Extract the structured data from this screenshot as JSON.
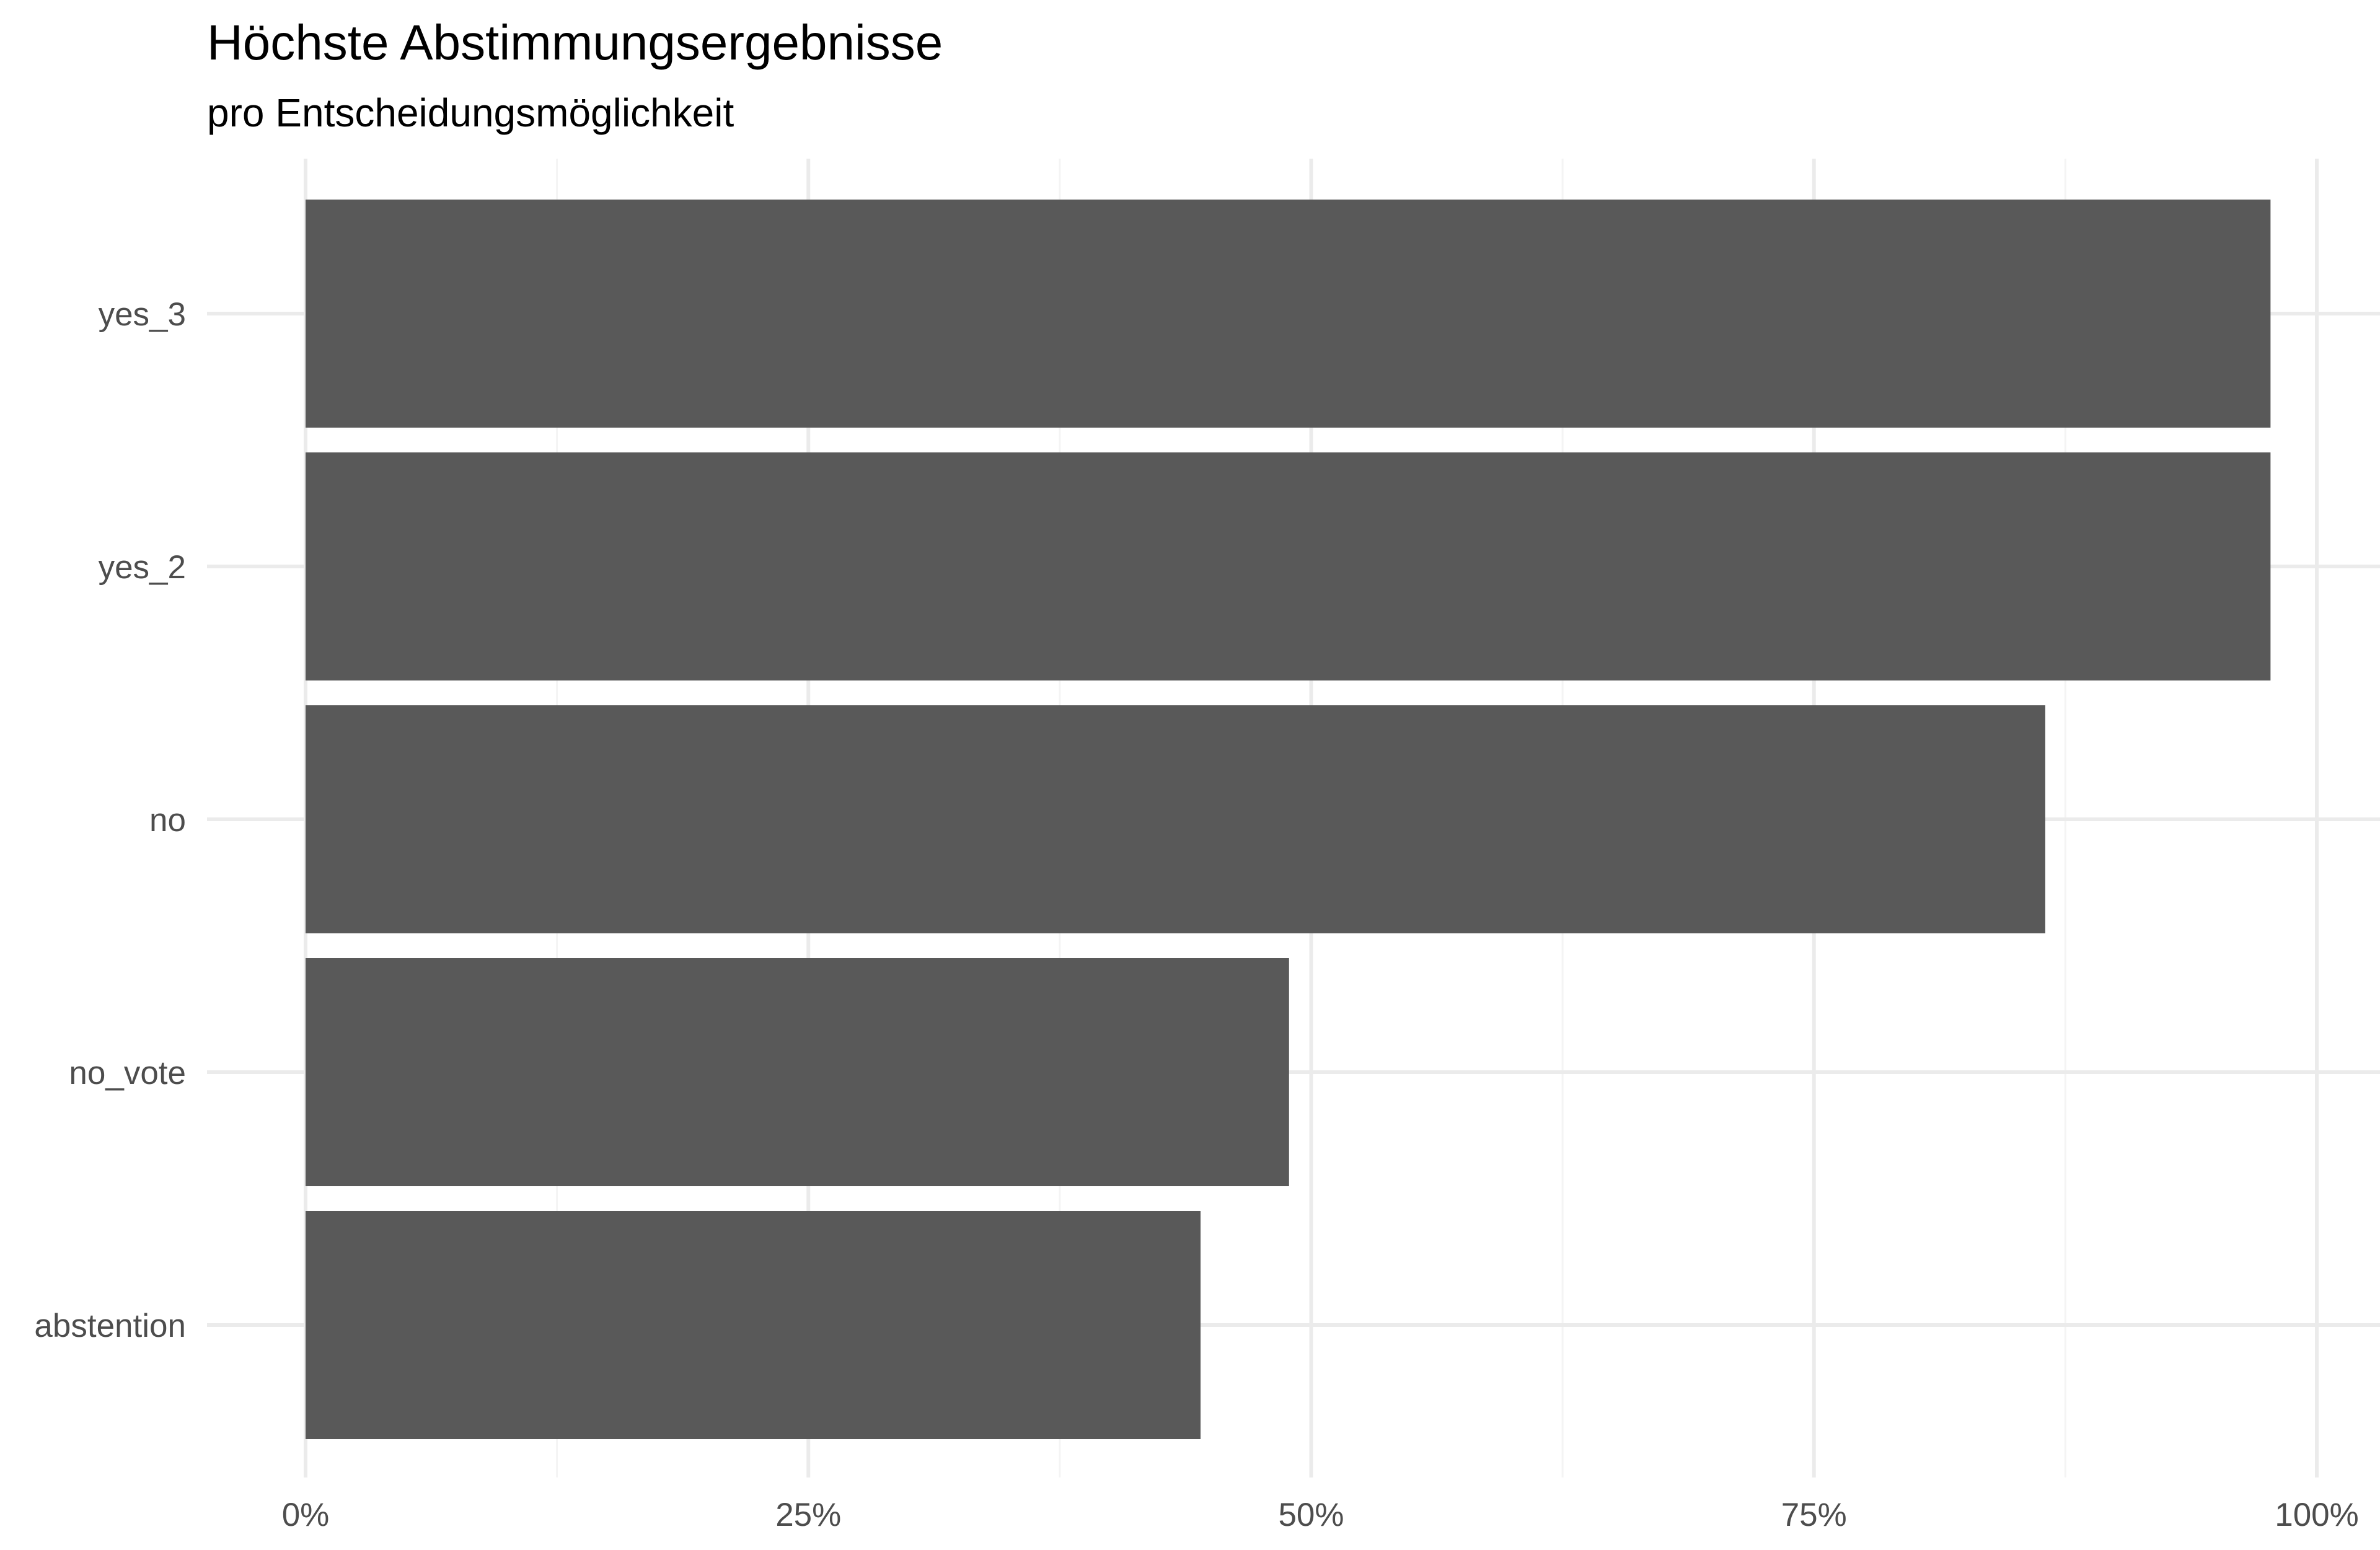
{
  "chart_data": {
    "type": "bar",
    "orientation": "horizontal",
    "title": "Höchste Abstimmungsergebnisse",
    "subtitle": "pro Entscheidungsmöglichkeit",
    "xlabel": "",
    "ylabel": "",
    "categories": [
      "yes_3",
      "yes_2",
      "no",
      "no_vote",
      "abstention"
    ],
    "values": [
      0.977,
      0.977,
      0.865,
      0.489,
      0.445
    ],
    "xlim": [
      0,
      1
    ],
    "x_ticks": [
      0,
      0.25,
      0.5,
      0.75,
      1
    ],
    "x_tick_labels": [
      "0%",
      "25%",
      "50%",
      "75%",
      "100%"
    ],
    "grid": true,
    "legend": "none",
    "colors": {
      "bar": "#595959",
      "grid_major": "#ebebeb",
      "grid_minor": "#f4f4f4",
      "tick_text": "#4d4d4d",
      "title_text": "#000000"
    }
  }
}
